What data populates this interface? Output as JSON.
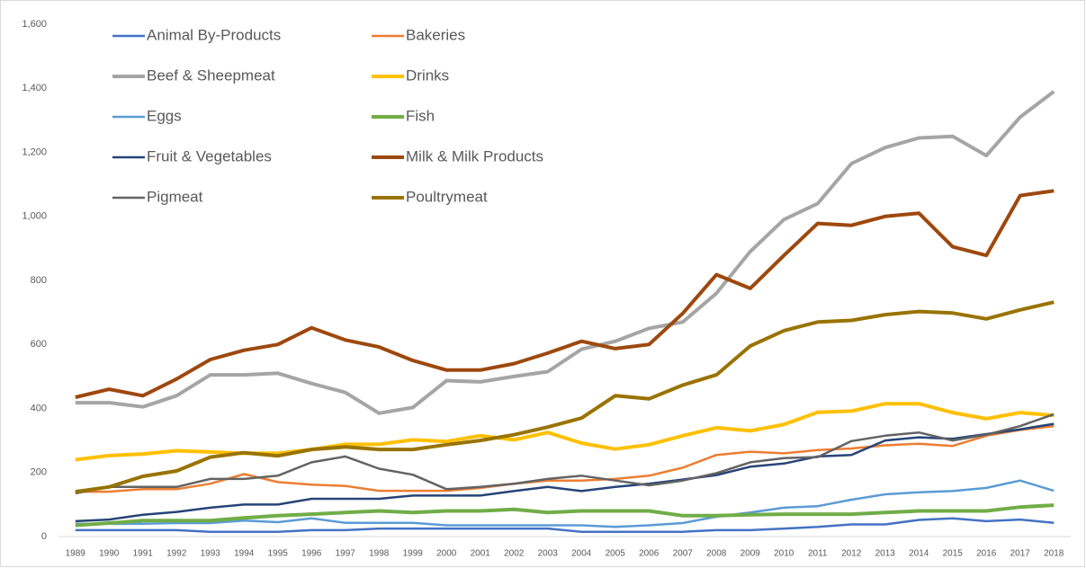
{
  "chart_data": {
    "type": "line",
    "categories": [
      "1989",
      "1990",
      "1991",
      "1992",
      "1993",
      "1994",
      "1995",
      "1996",
      "1997",
      "1998",
      "1999",
      "2000",
      "2001",
      "2002",
      "2003",
      "2004",
      "2005",
      "2006",
      "2007",
      "2008",
      "2009",
      "2010",
      "2011",
      "2012",
      "2013",
      "2014",
      "2015",
      "2016",
      "2017",
      "2018"
    ],
    "ylim": [
      0,
      1600
    ],
    "yticks": [
      0,
      200,
      400,
      600,
      800,
      {
        "value": 1000,
        "label": "1,000"
      },
      {
        "value": 1200,
        "label": "1,200"
      },
      {
        "value": 1400,
        "label": "1,400"
      },
      {
        "value": 1600,
        "label": "1,600"
      }
    ],
    "grid": false,
    "legend": "top-left",
    "series": [
      {
        "name": "Animal By-Products",
        "color": "#4472c4",
        "values": [
          20,
          20,
          20,
          20,
          15,
          15,
          15,
          20,
          20,
          25,
          25,
          25,
          25,
          25,
          25,
          15,
          15,
          15,
          15,
          20,
          20,
          25,
          30,
          38,
          38,
          52,
          57,
          48,
          53,
          43
        ]
      },
      {
        "name": "Bakeries",
        "color": "#ed7d31",
        "values": [
          140,
          140,
          148,
          148,
          165,
          195,
          170,
          162,
          158,
          143,
          143,
          143,
          152,
          165,
          175,
          175,
          180,
          190,
          215,
          255,
          265,
          260,
          270,
          275,
          285,
          290,
          283,
          315,
          333,
          345
        ]
      },
      {
        "name": "Beef & Sheepmeat",
        "color": "#a5a5a5",
        "values": [
          418,
          418,
          405,
          440,
          505,
          505,
          510,
          478,
          450,
          385,
          403,
          487,
          483,
          500,
          515,
          585,
          610,
          650,
          670,
          760,
          890,
          990,
          1040,
          1165,
          1215,
          1245,
          1250,
          1190,
          1310,
          1390
        ]
      },
      {
        "name": "Drinks",
        "color": "#ffc000",
        "values": [
          240,
          253,
          258,
          268,
          264,
          260,
          260,
          272,
          288,
          288,
          302,
          297,
          315,
          302,
          325,
          292,
          273,
          287,
          315,
          340,
          330,
          350,
          388,
          392,
          415,
          415,
          387,
          368,
          387,
          378
        ]
      },
      {
        "name": "Eggs",
        "color": "#5b9bd5",
        "values": [
          40,
          40,
          40,
          42,
          42,
          50,
          45,
          57,
          43,
          43,
          43,
          35,
          35,
          35,
          35,
          35,
          30,
          35,
          42,
          62,
          75,
          90,
          95,
          115,
          132,
          138,
          142,
          152,
          175,
          143
        ]
      },
      {
        "name": "Fish",
        "color": "#70ad47",
        "values": [
          35,
          42,
          50,
          50,
          50,
          58,
          65,
          70,
          75,
          80,
          75,
          80,
          80,
          85,
          75,
          80,
          80,
          80,
          65,
          65,
          68,
          70,
          70,
          70,
          75,
          80,
          80,
          80,
          92,
          98
        ]
      },
      {
        "name": "Fruit & Vegetables",
        "color": "#264478",
        "values": [
          48,
          53,
          68,
          77,
          90,
          100,
          100,
          118,
          118,
          118,
          128,
          128,
          128,
          142,
          155,
          142,
          155,
          165,
          178,
          192,
          218,
          228,
          250,
          255,
          300,
          310,
          305,
          320,
          335,
          352
        ]
      },
      {
        "name": "Milk & Milk Products",
        "color": "#9e480e",
        "values": [
          435,
          460,
          440,
          492,
          553,
          582,
          600,
          652,
          614,
          592,
          550,
          520,
          520,
          540,
          573,
          610,
          587,
          600,
          697,
          818,
          775,
          878,
          978,
          972,
          1000,
          1010,
          905,
          878,
          1065,
          1080
        ]
      },
      {
        "name": "Pigmeat",
        "color": "#636363",
        "values": [
          135,
          155,
          155,
          155,
          180,
          180,
          190,
          232,
          250,
          212,
          193,
          148,
          155,
          165,
          180,
          190,
          175,
          160,
          175,
          198,
          232,
          245,
          248,
          298,
          315,
          325,
          300,
          318,
          345,
          382
        ]
      },
      {
        "name": "Poultrymeat",
        "color": "#997300",
        "values": [
          140,
          155,
          188,
          205,
          248,
          262,
          252,
          272,
          280,
          272,
          272,
          287,
          300,
          318,
          342,
          370,
          440,
          430,
          473,
          505,
          595,
          643,
          670,
          675,
          693,
          703,
          698,
          680,
          708,
          732
        ]
      }
    ]
  }
}
